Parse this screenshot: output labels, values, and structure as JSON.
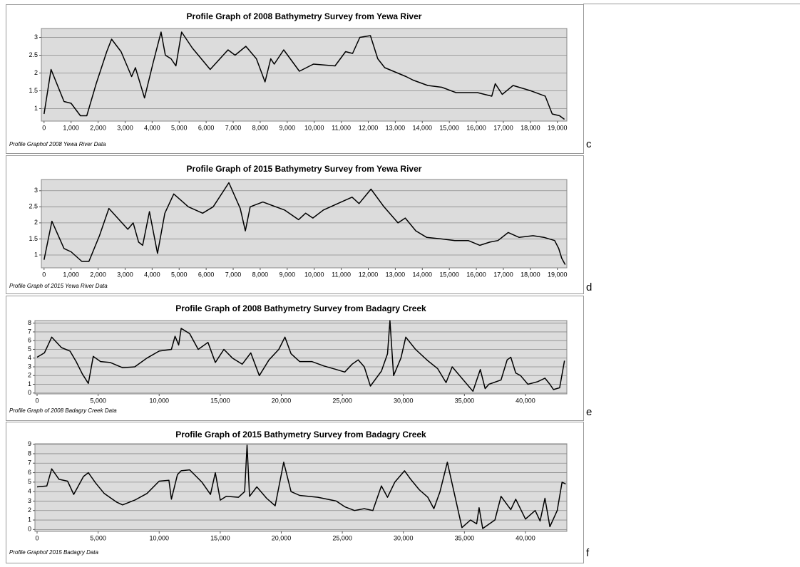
{
  "chart_data": [
    {
      "type": "line",
      "title": "Profile Graph of 2008 Bathymetry Survey from Yewa River",
      "footnote": "Profile Graphof 2008 Yewa River Data",
      "panel_label": "c",
      "color": "#000000",
      "grid": true,
      "x": [
        0,
        260,
        740,
        1000,
        1345,
        1580,
        1930,
        2320,
        2500,
        2850,
        3240,
        3380,
        3720,
        4040,
        4330,
        4490,
        4700,
        4880,
        5090,
        5490,
        6150,
        6810,
        7070,
        7470,
        7860,
        8180,
        8390,
        8520,
        8870,
        9450,
        9970,
        10770,
        11160,
        11420,
        11690,
        12080,
        12350,
        12610,
        13400,
        13660,
        14200,
        14720,
        15250,
        16040,
        16570,
        16700,
        16960,
        17360,
        18020,
        18550,
        18810,
        19080,
        19260
      ],
      "values": [
        0.85,
        2.1,
        1.2,
        1.15,
        0.8,
        0.8,
        1.7,
        2.6,
        2.95,
        2.6,
        1.9,
        2.15,
        1.3,
        2.3,
        3.15,
        2.5,
        2.4,
        2.2,
        3.15,
        2.7,
        2.1,
        2.65,
        2.5,
        2.75,
        2.4,
        1.75,
        2.4,
        2.25,
        2.65,
        2.05,
        2.25,
        2.2,
        2.6,
        2.55,
        3.0,
        3.05,
        2.4,
        2.15,
        1.9,
        1.8,
        1.65,
        1.6,
        1.45,
        1.45,
        1.35,
        1.7,
        1.4,
        1.65,
        1.5,
        1.35,
        0.85,
        0.8,
        0.7
      ],
      "xlim": [
        -100,
        19350
      ],
      "ylim": [
        0.65,
        3.25
      ],
      "xticks": [
        0,
        {
          "value": 1000,
          "label": "1,000"
        },
        {
          "value": 2000,
          "label": "2,000"
        },
        {
          "value": 3000,
          "label": "3,000"
        },
        {
          "value": 4000,
          "label": "4,000"
        },
        {
          "value": 5000,
          "label": "5,000"
        },
        {
          "value": 6000,
          "label": "6,000"
        },
        {
          "value": 7000,
          "label": "7,000"
        },
        {
          "value": 8000,
          "label": "8,000"
        },
        {
          "value": 9000,
          "label": "9,000"
        },
        {
          "value": 10000,
          "label": "10,000"
        },
        {
          "value": 11000,
          "label": "11,000"
        },
        {
          "value": 12000,
          "label": "12,000"
        },
        {
          "value": 13000,
          "label": "13,000"
        },
        {
          "value": 14000,
          "label": "14,000"
        },
        {
          "value": 15000,
          "label": "15,000"
        },
        {
          "value": 16000,
          "label": "16,000"
        },
        {
          "value": 17000,
          "label": "17,000"
        },
        {
          "value": 18000,
          "label": "18,000"
        },
        {
          "value": 19000,
          "label": "19,000"
        }
      ],
      "yticks": [
        1,
        1.5,
        2,
        2.5,
        3
      ]
    },
    {
      "type": "line",
      "title": "Profile Graph of 2015 Bathymetry Survey from Yewa River",
      "footnote": "Profile Graph of 2015 Yewa River Data",
      "panel_label": "d",
      "color": "#000000",
      "grid": true,
      "x": [
        0,
        290,
        740,
        1000,
        1400,
        1660,
        2050,
        2400,
        3100,
        3300,
        3500,
        3650,
        3900,
        4200,
        4470,
        4800,
        5340,
        5870,
        6260,
        6840,
        7260,
        7450,
        7630,
        8100,
        8900,
        9420,
        9680,
        9950,
        10340,
        11000,
        11400,
        11660,
        12100,
        12580,
        13100,
        13370,
        13760,
        14160,
        14700,
        15200,
        15700,
        16130,
        16500,
        16800,
        17180,
        17580,
        18100,
        18500,
        18900,
        19050,
        19160,
        19290
      ],
      "values": [
        0.85,
        2.05,
        1.2,
        1.1,
        0.8,
        0.8,
        1.6,
        2.45,
        1.8,
        2.0,
        1.4,
        1.3,
        2.35,
        1.05,
        2.3,
        2.9,
        2.5,
        2.3,
        2.5,
        3.25,
        2.45,
        1.75,
        2.5,
        2.65,
        2.4,
        2.1,
        2.3,
        2.15,
        2.4,
        2.65,
        2.8,
        2.6,
        3.05,
        2.5,
        2.0,
        2.15,
        1.75,
        1.55,
        1.5,
        1.45,
        1.45,
        1.3,
        1.4,
        1.45,
        1.7,
        1.55,
        1.6,
        1.55,
        1.45,
        1.2,
        0.9,
        0.7
      ],
      "xlim": [
        -100,
        19350
      ],
      "ylim": [
        0.6,
        3.35
      ],
      "xticks": [
        0,
        {
          "value": 1000,
          "label": "1,000"
        },
        {
          "value": 2000,
          "label": "2,000"
        },
        {
          "value": 3000,
          "label": "3,000"
        },
        {
          "value": 4000,
          "label": "4,000"
        },
        {
          "value": 5000,
          "label": "5,000"
        },
        {
          "value": 6000,
          "label": "6,000"
        },
        {
          "value": 7000,
          "label": "7,000"
        },
        {
          "value": 8000,
          "label": "8,000"
        },
        {
          "value": 9000,
          "label": "9,000"
        },
        {
          "value": 10000,
          "label": "10,000"
        },
        {
          "value": 11000,
          "label": "11,000"
        },
        {
          "value": 12000,
          "label": "12,000"
        },
        {
          "value": 13000,
          "label": "13,000"
        },
        {
          "value": 14000,
          "label": "14,000"
        },
        {
          "value": 15000,
          "label": "15,000"
        },
        {
          "value": 16000,
          "label": "16,000"
        },
        {
          "value": 17000,
          "label": "17,000"
        },
        {
          "value": 18000,
          "label": "18,000"
        },
        {
          "value": 19000,
          "label": "19,000"
        }
      ],
      "yticks": [
        1,
        1.5,
        2,
        2.5,
        3
      ]
    },
    {
      "type": "line",
      "title": "Profile Graph of 2008 Bathymetry Survey from Badagry Creek",
      "footnote": "Profile Graph of 2008 Badagry Creek Data",
      "panel_label": "e",
      "color": "#000000",
      "grid": true,
      "x": [
        0,
        600,
        1200,
        2000,
        2700,
        3200,
        3700,
        4200,
        4600,
        5200,
        6000,
        7000,
        8000,
        9000,
        10000,
        11000,
        11300,
        11600,
        11800,
        12500,
        13200,
        14000,
        14600,
        15300,
        16000,
        16800,
        17500,
        18200,
        19000,
        19800,
        20300,
        20800,
        21500,
        22500,
        23500,
        24500,
        25200,
        25800,
        26300,
        26800,
        27300,
        28200,
        28700,
        28900,
        29200,
        29800,
        30200,
        31000,
        32000,
        32800,
        33500,
        34000,
        35700,
        36300,
        36700,
        37000,
        38000,
        38500,
        38800,
        39200,
        39600,
        40200,
        41000,
        41600,
        42000,
        42300,
        42800,
        43200
      ],
      "values": [
        4.1,
        4.6,
        6.4,
        5.2,
        4.8,
        3.6,
        2.2,
        1.1,
        4.2,
        3.6,
        3.5,
        2.9,
        3.0,
        4.0,
        4.8,
        5.0,
        6.5,
        5.5,
        7.4,
        6.8,
        5.0,
        5.8,
        3.5,
        5.0,
        4.0,
        3.3,
        4.6,
        2.0,
        3.8,
        5.0,
        6.4,
        4.5,
        3.6,
        3.6,
        3.1,
        2.7,
        2.4,
        3.3,
        3.8,
        3.0,
        0.8,
        2.5,
        4.5,
        8.3,
        2.0,
        4.0,
        6.4,
        5.0,
        3.7,
        2.8,
        1.2,
        3.0,
        0.2,
        2.7,
        0.5,
        1.0,
        1.5,
        3.8,
        4.1,
        2.3,
        2.0,
        1.0,
        1.3,
        1.7,
        1.0,
        0.4,
        0.6,
        3.7
      ],
      "xlim": [
        -175,
        43390
      ],
      "ylim": [
        -0.1,
        8.3
      ],
      "xticks": [
        0,
        {
          "value": 5000,
          "label": "5,000"
        },
        {
          "value": 10000,
          "label": "10,000"
        },
        {
          "value": 15000,
          "label": "15,000"
        },
        {
          "value": 20000,
          "label": "20,000"
        },
        {
          "value": 25000,
          "label": "25,000"
        },
        {
          "value": 30000,
          "label": "30,000"
        },
        {
          "value": 35000,
          "label": "35,000"
        },
        {
          "value": 40000,
          "label": "40,000"
        }
      ],
      "yticks": [
        0,
        1,
        2,
        3,
        4,
        5,
        6,
        7,
        8
      ]
    },
    {
      "type": "line",
      "title": "Profile Graph of 2015 Bathymetry Survey from Badagry Creek",
      "footnote": "Profile Graphof 2015 Badagry Data",
      "panel_label": "f",
      "color": "#000000",
      "grid": true,
      "x": [
        0,
        800,
        1200,
        1800,
        2500,
        3000,
        3800,
        4200,
        4800,
        5500,
        6500,
        7000,
        8000,
        9000,
        10000,
        10800,
        11000,
        11500,
        11800,
        12500,
        13500,
        14200,
        14600,
        15000,
        15500,
        16500,
        17000,
        17200,
        17400,
        18000,
        18800,
        19500,
        20200,
        20800,
        21500,
        23000,
        24500,
        25200,
        26000,
        26800,
        27500,
        28200,
        28700,
        29300,
        30100,
        30600,
        31300,
        32000,
        32500,
        33000,
        33600,
        34800,
        35500,
        36000,
        36200,
        36500,
        37500,
        38000,
        38800,
        39200,
        40000,
        40800,
        41200,
        41600,
        42000,
        42600,
        43000,
        43300
      ],
      "values": [
        4.5,
        4.6,
        6.4,
        5.3,
        5.1,
        3.7,
        5.6,
        6.0,
        4.9,
        3.8,
        2.9,
        2.6,
        3.1,
        3.8,
        5.1,
        5.2,
        3.2,
        5.8,
        6.2,
        6.3,
        5.0,
        3.7,
        6.0,
        3.1,
        3.5,
        3.4,
        4.0,
        8.9,
        3.5,
        4.5,
        3.3,
        2.5,
        7.1,
        4.0,
        3.6,
        3.4,
        3.0,
        2.4,
        2.0,
        2.2,
        2.0,
        4.6,
        3.4,
        5.0,
        6.2,
        5.3,
        4.2,
        3.4,
        2.2,
        4.0,
        7.1,
        0.2,
        1.0,
        0.6,
        2.3,
        0.1,
        1.0,
        3.5,
        2.1,
        3.2,
        1.1,
        2.0,
        0.9,
        3.3,
        0.3,
        2.0,
        5.0,
        4.8
      ],
      "xlim": [
        -175,
        43390
      ],
      "ylim": [
        -0.2,
        9.05
      ],
      "xticks": [
        0,
        {
          "value": 5000,
          "label": "5,000"
        },
        {
          "value": 10000,
          "label": "10,000"
        },
        {
          "value": 15000,
          "label": "15,000"
        },
        {
          "value": 20000,
          "label": "20,000"
        },
        {
          "value": 25000,
          "label": "25,000"
        },
        {
          "value": 30000,
          "label": "30,000"
        },
        {
          "value": 35000,
          "label": "35,000"
        },
        {
          "value": 40000,
          "label": "40,000"
        }
      ],
      "yticks": [
        0,
        1,
        2,
        3,
        4,
        5,
        6,
        7,
        8,
        9
      ]
    }
  ]
}
